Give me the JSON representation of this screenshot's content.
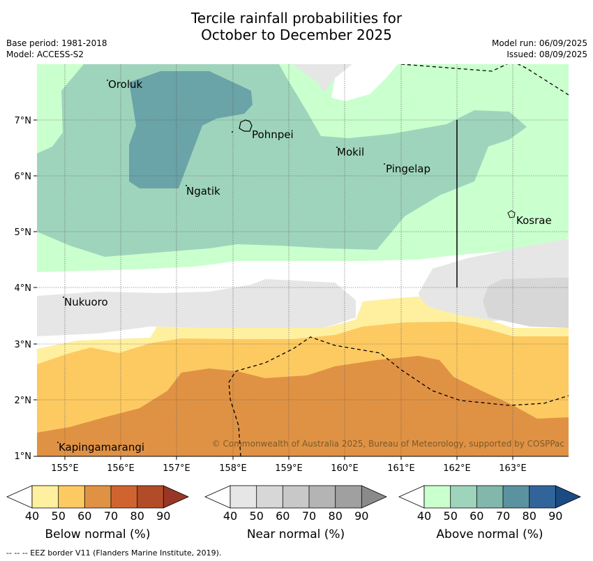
{
  "title_line1": "Tercile rainfall probabilities for",
  "title_line2": "October to December 2025",
  "base_period": "Base period: 1981-2018",
  "model": "Model: ACCESS-S2",
  "model_run": "Model run: 06/09/2025",
  "issued": "Issued: 08/09/2025",
  "copyright": "© Commonwealth of Australia 2025, Bureau of Meteorology, supported by COSPPac",
  "lat_labels": [
    "7°N",
    "6°N",
    "5°N",
    "4°N",
    "3°N",
    "2°N",
    "1°N"
  ],
  "lon_labels": [
    "155°E",
    "156°E",
    "157°E",
    "158°E",
    "159°E",
    "160°E",
    "161°E",
    "162°E",
    "163°E"
  ],
  "places": {
    "oroluk": "Oroluk",
    "pohnpei": "Pohnpei",
    "mokil": "Mokil",
    "pingelap": "Pingelap",
    "ngatik": "Ngatik",
    "kosrae": "Kosrae",
    "nukuoro": "Nukuoro",
    "kapingamarangi": "Kapingamarangi"
  },
  "colorbars": {
    "ticks": [
      "40",
      "50",
      "60",
      "70",
      "80",
      "90"
    ],
    "below": {
      "label": "Below normal (%)",
      "colors": [
        "#fff0a0",
        "#fdca62",
        "#e09244",
        "#cf6431",
        "#b24c28",
        "#983726"
      ]
    },
    "near": {
      "label": "Near normal (%)",
      "colors": [
        "#e6e6e6",
        "#d7d7d7",
        "#c8c8c8",
        "#b4b4b4",
        "#a0a0a0",
        "#8a8a8a"
      ]
    },
    "above": {
      "label": "Above normal (%)",
      "colors": [
        "#caffce",
        "#9fd4bc",
        "#82b7ab",
        "#5a929f",
        "#31659a",
        "#1b4b82"
      ]
    }
  },
  "footer": "--  --  -- EEZ border V11 (Flanders Marine Institute, 2019)."
}
